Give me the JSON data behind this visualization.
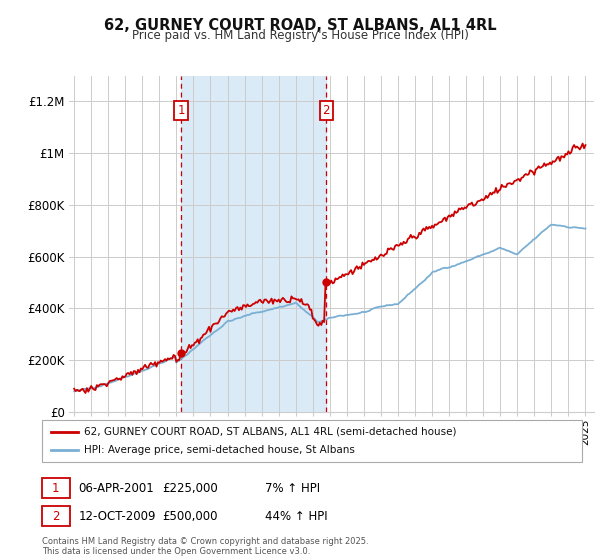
{
  "title": "62, GURNEY COURT ROAD, ST ALBANS, AL1 4RL",
  "subtitle": "Price paid vs. HM Land Registry's House Price Index (HPI)",
  "legend_line1": "62, GURNEY COURT ROAD, ST ALBANS, AL1 4RL (semi-detached house)",
  "legend_line2": "HPI: Average price, semi-detached house, St Albans",
  "footnote": "Contains HM Land Registry data © Crown copyright and database right 2025.\nThis data is licensed under the Open Government Licence v3.0.",
  "annotation1_date": "06-APR-2001",
  "annotation1_price": "£225,000",
  "annotation1_pct": "7% ↑ HPI",
  "annotation1_year": 2001.27,
  "annotation1_value": 225000,
  "annotation2_date": "12-OCT-2009",
  "annotation2_price": "£500,000",
  "annotation2_pct": "44% ↑ HPI",
  "annotation2_year": 2009.79,
  "annotation2_value": 500000,
  "red_color": "#cc0000",
  "blue_color": "#7aafd4",
  "shade_color": "#daeaf7",
  "grid_color": "#cccccc",
  "background_color": "#ffffff",
  "ylim": [
    0,
    1300000
  ],
  "xlim_start": 1994.7,
  "xlim_end": 2025.5,
  "yticks": [
    0,
    200000,
    400000,
    600000,
    800000,
    1000000,
    1200000
  ],
  "ytick_labels": [
    "£0",
    "£200K",
    "£400K",
    "£600K",
    "£800K",
    "£1M",
    "£1.2M"
  ],
  "xticks": [
    1995,
    1996,
    1997,
    1998,
    1999,
    2000,
    2001,
    2002,
    2003,
    2004,
    2005,
    2006,
    2007,
    2008,
    2009,
    2010,
    2011,
    2012,
    2013,
    2014,
    2015,
    2016,
    2017,
    2018,
    2019,
    2020,
    2021,
    2022,
    2023,
    2024,
    2025
  ]
}
